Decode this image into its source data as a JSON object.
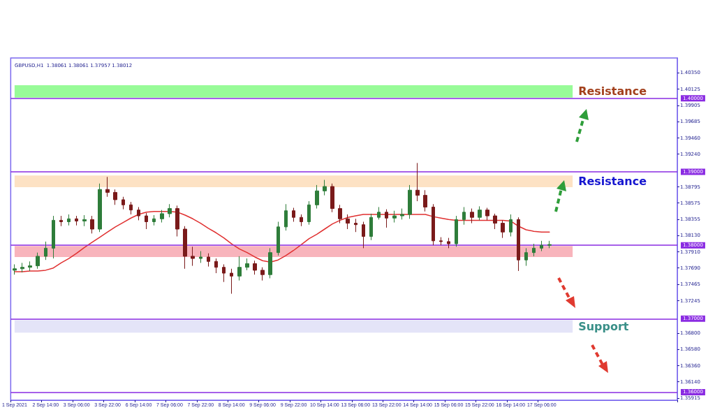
{
  "chart_data": {
    "type": "candlestick",
    "title": "GBPUSD,H1  1.38061 1.38061 1.37957 1.38012",
    "categories": [
      "1 Sep 2021",
      null,
      null,
      null,
      "2 Sep 14:00",
      null,
      null,
      null,
      "3 Sep 06:00",
      null,
      null,
      null,
      "3 Sep 22:00",
      null,
      null,
      null,
      "6 Sep 14:00",
      null,
      null,
      null,
      "7 Sep 06:00",
      null,
      null,
      null,
      "7 Sep 22:00",
      null,
      null,
      null,
      "8 Sep 14:00",
      null,
      null,
      null,
      "9 Sep 06:00",
      null,
      null,
      null,
      "9 Sep 22:00",
      null,
      null,
      null,
      "10 Sep 14:00",
      null,
      null,
      null,
      "13 Sep 06:00",
      null,
      null,
      null,
      "13 Sep 22:00",
      null,
      null,
      null,
      "14 Sep 14:00",
      null,
      null,
      null,
      "15 Sep 06:00",
      null,
      null,
      null,
      "15 Sep 22:00",
      null,
      null,
      null,
      "16 Sep 14:00",
      null,
      null,
      null,
      "17 Sep 06:00",
      null,
      null,
      null,
      null,
      null,
      null,
      null,
      null,
      null,
      null,
      null,
      null,
      null,
      null,
      null,
      null,
      null
    ],
    "ohlc": [
      [
        1.3766,
        1.3774,
        1.376,
        1.3768
      ],
      [
        1.3768,
        1.3776,
        1.3763,
        1.377
      ],
      [
        1.377,
        1.3778,
        1.3765,
        1.3772
      ],
      [
        1.3772,
        1.379,
        1.3768,
        1.3785
      ],
      [
        1.3785,
        1.3805,
        1.378,
        1.3796
      ],
      [
        1.3796,
        1.384,
        1.3782,
        1.3834
      ],
      [
        1.3834,
        1.384,
        1.3826,
        1.3832
      ],
      [
        1.3832,
        1.3842,
        1.3827,
        1.3836
      ],
      [
        1.3836,
        1.384,
        1.3827,
        1.3833
      ],
      [
        1.3833,
        1.3841,
        1.3826,
        1.3835
      ],
      [
        1.3835,
        1.384,
        1.3816,
        1.3822
      ],
      [
        1.3822,
        1.3884,
        1.3818,
        1.3876
      ],
      [
        1.3876,
        1.3893,
        1.3866,
        1.3872
      ],
      [
        1.3872,
        1.3876,
        1.3855,
        1.3862
      ],
      [
        1.3862,
        1.3866,
        1.3849,
        1.3855
      ],
      [
        1.3855,
        1.3859,
        1.3842,
        1.3848
      ],
      [
        1.3848,
        1.3852,
        1.3834,
        1.384
      ],
      [
        1.384,
        1.3844,
        1.3822,
        1.3832
      ],
      [
        1.3832,
        1.3841,
        1.3827,
        1.3836
      ],
      [
        1.3836,
        1.3848,
        1.3831,
        1.3843
      ],
      [
        1.3843,
        1.3856,
        1.3838,
        1.385
      ],
      [
        1.385,
        1.3854,
        1.3812,
        1.3822
      ],
      [
        1.3822,
        1.3826,
        1.3768,
        1.3785
      ],
      [
        1.3785,
        1.3798,
        1.3772,
        1.3782
      ],
      [
        1.3782,
        1.3792,
        1.3776,
        1.3784
      ],
      [
        1.3784,
        1.3789,
        1.3771,
        1.3778
      ],
      [
        1.3778,
        1.3782,
        1.3762,
        1.377
      ],
      [
        1.377,
        1.3774,
        1.375,
        1.3762
      ],
      [
        1.3762,
        1.3768,
        1.3734,
        1.3758
      ],
      [
        1.3758,
        1.3785,
        1.3752,
        1.377
      ],
      [
        1.377,
        1.3782,
        1.3766,
        1.3775
      ],
      [
        1.3775,
        1.3779,
        1.376,
        1.3766
      ],
      [
        1.3766,
        1.377,
        1.3752,
        1.376
      ],
      [
        1.376,
        1.3796,
        1.3755,
        1.379
      ],
      [
        1.379,
        1.3832,
        1.3786,
        1.3825
      ],
      [
        1.3825,
        1.3856,
        1.382,
        1.3847
      ],
      [
        1.3847,
        1.3851,
        1.3832,
        1.3838
      ],
      [
        1.3838,
        1.3842,
        1.3826,
        1.3832
      ],
      [
        1.3832,
        1.386,
        1.3828,
        1.3855
      ],
      [
        1.3855,
        1.3882,
        1.385,
        1.3874
      ],
      [
        1.3874,
        1.3889,
        1.3868,
        1.388
      ],
      [
        1.388,
        1.3884,
        1.3845,
        1.385
      ],
      [
        1.385,
        1.3855,
        1.383,
        1.3836
      ],
      [
        1.3836,
        1.3842,
        1.3822,
        1.383
      ],
      [
        1.383,
        1.3836,
        1.3818,
        1.3828
      ],
      [
        1.3828,
        1.3832,
        1.3796,
        1.3812
      ],
      [
        1.3812,
        1.3843,
        1.3807,
        1.3838
      ],
      [
        1.3838,
        1.3852,
        1.3835,
        1.3845
      ],
      [
        1.3845,
        1.3849,
        1.3824,
        1.3837
      ],
      [
        1.3837,
        1.3847,
        1.3831,
        1.384
      ],
      [
        1.384,
        1.385,
        1.3835,
        1.3842
      ],
      [
        1.3842,
        1.3882,
        1.3836,
        1.3875
      ],
      [
        1.3875,
        1.3912,
        1.386,
        1.3868
      ],
      [
        1.3868,
        1.3875,
        1.3846,
        1.3852
      ],
      [
        1.3852,
        1.3856,
        1.38,
        1.3806
      ],
      [
        1.3806,
        1.3811,
        1.38,
        1.3805
      ],
      [
        1.3805,
        1.381,
        1.3796,
        1.3802
      ],
      [
        1.3802,
        1.384,
        1.3798,
        1.3835
      ],
      [
        1.3835,
        1.3852,
        1.3828,
        1.3845
      ],
      [
        1.3845,
        1.385,
        1.383,
        1.3838
      ],
      [
        1.3838,
        1.3853,
        1.3834,
        1.3848
      ],
      [
        1.3848,
        1.3851,
        1.3834,
        1.384
      ],
      [
        1.384,
        1.3843,
        1.3822,
        1.383
      ],
      [
        1.383,
        1.3834,
        1.381,
        1.3818
      ],
      [
        1.3818,
        1.3842,
        1.3812,
        1.3835
      ],
      [
        1.3835,
        1.3838,
        1.3765,
        1.378
      ],
      [
        1.378,
        1.3796,
        1.3772,
        1.379
      ],
      [
        1.379,
        1.3802,
        1.3785,
        1.3796
      ],
      [
        1.3796,
        1.3806,
        1.3792,
        1.38
      ],
      [
        1.38,
        1.3806,
        1.3796,
        1.3801
      ],
      null,
      null,
      null,
      null,
      null,
      null,
      null,
      null,
      null,
      null,
      null,
      null,
      null,
      null,
      null,
      null
    ],
    "colors": [
      "#2e7d3a",
      "#2e7d3a",
      "#2e7d3a",
      "#2e7d3a",
      "#2e7d3a",
      "#2e7d3a",
      "#7a1a1a",
      "#2e7d3a",
      "#7a1a1a",
      "#2e7d3a",
      "#7a1a1a",
      "#2e7d3a",
      "#7a1a1a",
      "#7a1a1a",
      "#7a1a1a",
      "#7a1a1a",
      "#7a1a1a",
      "#7a1a1a",
      "#2e7d3a",
      "#2e7d3a",
      "#2e7d3a",
      "#7a1a1a",
      "#7a1a1a",
      "#7a1a1a",
      "#2e7d3a",
      "#7a1a1a",
      "#7a1a1a",
      "#7a1a1a",
      "#7a1a1a",
      "#2e7d3a",
      "#2e7d3a",
      "#7a1a1a",
      "#7a1a1a",
      "#2e7d3a",
      "#2e7d3a",
      "#2e7d3a",
      "#7a1a1a",
      "#7a1a1a",
      "#2e7d3a",
      "#2e7d3a",
      "#2e7d3a",
      "#7a1a1a",
      "#7a1a1a",
      "#7a1a1a",
      "#7a1a1a",
      "#7a1a1a",
      "#2e7d3a",
      "#2e7d3a",
      "#7a1a1a",
      "#2e7d3a",
      "#2e7d3a",
      "#2e7d3a",
      "#7a1a1a",
      "#7a1a1a",
      "#7a1a1a",
      "#7a1a1a",
      "#7a1a1a",
      "#2e7d3a",
      "#2e7d3a",
      "#7a1a1a",
      "#2e7d3a",
      "#7a1a1a",
      "#7a1a1a",
      "#7a1a1a",
      "#2e7d3a",
      "#7a1a1a",
      "#2e7d3a",
      "#2e7d3a",
      "#2e7d3a",
      "#2e7d3a",
      null,
      null,
      null,
      null,
      null,
      null,
      null,
      null,
      null,
      null,
      null,
      null,
      null,
      null,
      null,
      null
    ],
    "series": [
      {
        "type": "line",
        "color": "#e03030",
        "marker": "none",
        "values": [
          1.3764,
          1.3764,
          1.3765,
          1.3765,
          1.3766,
          1.3769,
          1.3776,
          1.3782,
          1.3789,
          1.3797,
          1.3804,
          1.3811,
          1.3818,
          1.3825,
          1.3831,
          1.3837,
          1.3842,
          1.3845,
          1.3846,
          1.3846,
          1.3846,
          1.3845,
          1.3841,
          1.3836,
          1.383,
          1.3823,
          1.3817,
          1.381,
          1.3802,
          1.3795,
          1.379,
          1.3784,
          1.3779,
          1.3777,
          1.378,
          1.3786,
          1.3793,
          1.3801,
          1.3809,
          1.3815,
          1.3822,
          1.3829,
          1.3834,
          1.3838,
          1.384,
          1.3842,
          1.3842,
          1.3842,
          1.3842,
          1.3842,
          1.3842,
          1.3842,
          1.3842,
          1.3842,
          1.3839,
          1.3837,
          1.3835,
          1.3834,
          1.3834,
          1.3834,
          1.3834,
          1.3834,
          1.3834,
          1.3834,
          1.3833,
          1.3826,
          1.3821,
          1.3819,
          1.3818,
          1.3818,
          null,
          null,
          null,
          null,
          null,
          null,
          null,
          null,
          null,
          null,
          null,
          null,
          null,
          null,
          null,
          null
        ]
      }
    ],
    "ylim": [
      1.3589,
      1.4055
    ],
    "yticks": [
      {
        "value": 1.4035,
        "label": "1.40350"
      },
      {
        "value": 1.40125,
        "label": "1.40125"
      },
      {
        "value": 1.39905,
        "label": "1.39905"
      },
      {
        "value": 1.39685,
        "label": "1.39685"
      },
      {
        "value": 1.3946,
        "label": "1.39460"
      },
      {
        "value": 1.3924,
        "label": "1.39240"
      },
      {
        "value": 1.38795,
        "label": "1.38795"
      },
      {
        "value": 1.38575,
        "label": "1.38575"
      },
      {
        "value": 1.38355,
        "label": "1.38355"
      },
      {
        "value": 1.3813,
        "label": "1.38130"
      },
      {
        "value": 1.3791,
        "label": "1.37910"
      },
      {
        "value": 1.3769,
        "label": "1.37690"
      },
      {
        "value": 1.37465,
        "label": "1.37465"
      },
      {
        "value": 1.37245,
        "label": "1.37245"
      },
      {
        "value": 1.368,
        "label": "1.36800"
      },
      {
        "value": 1.3658,
        "label": "1.36580"
      },
      {
        "value": 1.3636,
        "label": "1.36360"
      },
      {
        "value": 1.3614,
        "label": "1.36140"
      },
      {
        "value": 1.35915,
        "label": "1.35915"
      }
    ],
    "ref_lines": [
      {
        "axis": "y",
        "value": 1.4,
        "label": "1.40000",
        "color": "#8a2be2"
      },
      {
        "axis": "y",
        "value": 1.39,
        "label": "1.39000",
        "color": "#8a2be2"
      },
      {
        "axis": "y",
        "value": 1.38,
        "label": "1.38000",
        "color": "#8a2be2"
      },
      {
        "axis": "y",
        "value": 1.37,
        "label": "1.37000",
        "color": "#8a2be2"
      },
      {
        "axis": "y",
        "value": 1.36,
        "label": "1.36000",
        "color": "#8a2be2"
      }
    ],
    "bands": [
      {
        "axis": "y",
        "from": 1.4001,
        "to": 1.4018,
        "label": "Resistance",
        "color": "#98fb98"
      },
      {
        "axis": "y",
        "from": 1.3879,
        "to": 1.3895,
        "label": "Resistance",
        "color": "#fde2c4"
      },
      {
        "axis": "y",
        "from": 1.3784,
        "to": 1.3799,
        "color": "#f8b4bc"
      },
      {
        "axis": "y",
        "from": 1.3681,
        "to": 1.3698,
        "label": "Support",
        "color": "#e4e4f8"
      }
    ],
    "grid": false
  }
}
